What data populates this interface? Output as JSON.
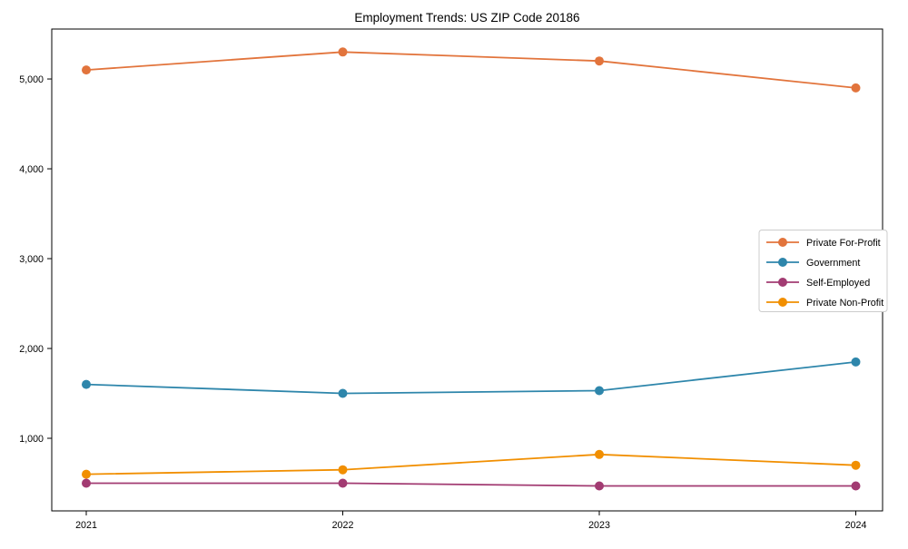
{
  "chart_data": {
    "type": "line",
    "title": "Employment Trends: US ZIP Code 20186",
    "categories": [
      "2021",
      "2022",
      "2023",
      "2024"
    ],
    "series": [
      {
        "name": "Private For-Profit",
        "color": "#E2743C",
        "values": [
          5100,
          5300,
          5200,
          4900
        ]
      },
      {
        "name": "Government",
        "color": "#2E86AB",
        "values": [
          1600,
          1500,
          1530,
          1850
        ]
      },
      {
        "name": "Self-Employed",
        "color": "#A23B72",
        "values": [
          500,
          500,
          470,
          470
        ]
      },
      {
        "name": "Private Non-Profit",
        "color": "#F18F01",
        "values": [
          600,
          650,
          820,
          700
        ]
      }
    ],
    "yticks": [
      {
        "value": 1000,
        "label": "1,000"
      },
      {
        "value": 2000,
        "label": "2,000"
      },
      {
        "value": 3000,
        "label": "3,000"
      },
      {
        "value": 4000,
        "label": "4,000"
      },
      {
        "value": 5000,
        "label": "5,000"
      }
    ],
    "ylim": [
      192,
      5556
    ],
    "xlabel": "",
    "ylabel": "",
    "grid": false,
    "legend_position": "center-right",
    "marker": "circle",
    "axis_color": "#000000",
    "legend_border_color": "#cccccc",
    "background": "#ffffff"
  }
}
